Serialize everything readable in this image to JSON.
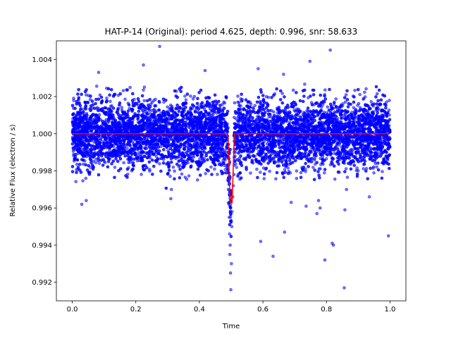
{
  "chart_data": {
    "type": "scatter",
    "title": "HAT-P-14 (Original): period 4.625, depth: 0.996, snr: 58.633",
    "xlabel": "Time",
    "ylabel": "Relative Flux (electron / s)",
    "xlim": [
      -0.05,
      1.05
    ],
    "ylim": [
      0.991,
      1.005
    ],
    "xticks": [
      0.0,
      0.2,
      0.4,
      0.6,
      0.8,
      1.0
    ],
    "xtick_labels": [
      "0.0",
      "0.2",
      "0.4",
      "0.6",
      "0.8",
      "1.0"
    ],
    "yticks": [
      0.992,
      0.994,
      0.996,
      0.998,
      1.0,
      1.002,
      1.004
    ],
    "ytick_labels": [
      "0.992",
      "0.994",
      "0.996",
      "0.998",
      "1.000",
      "1.002",
      "1.004"
    ],
    "grid": false,
    "series": [
      {
        "kind": "scatter",
        "color": "#0000ff",
        "description_points": [
          [
            0.275,
            1.0047
          ],
          [
            0.812,
            1.0045
          ],
          [
            0.748,
            1.0039
          ],
          [
            0.224,
            1.0037
          ],
          [
            0.585,
            1.0035
          ],
          [
            0.418,
            1.0034
          ],
          [
            0.083,
            1.0033
          ],
          [
            0.665,
            1.0032
          ],
          [
            0.593,
            0.9942
          ],
          [
            0.668,
            0.9947
          ],
          [
            0.632,
            0.9934
          ],
          [
            0.795,
            0.9932
          ],
          [
            0.818,
            0.9941
          ],
          [
            0.822,
            0.994
          ],
          [
            0.856,
            0.9917
          ],
          [
            0.995,
            0.9945
          ],
          [
            0.736,
            0.9961
          ],
          [
            0.77,
            0.9957
          ],
          [
            0.78,
            0.996
          ],
          [
            0.689,
            0.9963
          ],
          [
            0.858,
            0.9959
          ],
          [
            0.935,
            0.9966
          ],
          [
            0.31,
            0.9965
          ],
          [
            0.044,
            0.9964
          ],
          [
            0.03,
            0.9962
          ],
          [
            0.312,
            0.997
          ],
          [
            0.775,
            0.9964
          ],
          [
            0.863,
            0.997
          ],
          [
            0.499,
            0.9916
          ],
          [
            0.498,
            0.9925
          ],
          [
            0.501,
            0.993
          ],
          [
            0.496,
            0.9935
          ],
          [
            0.497,
            0.994
          ],
          [
            0.495,
            0.9946
          ],
          [
            0.502,
            0.995
          ],
          [
            0.494,
            0.9955
          ],
          [
            0.503,
            0.9958
          ],
          [
            0.493,
            0.9962
          ],
          [
            0.505,
            0.9966
          ],
          [
            0.491,
            0.997
          ],
          [
            0.507,
            0.9972
          ],
          [
            0.489,
            0.9975
          ],
          [
            0.509,
            0.9978
          ],
          [
            0.487,
            0.9982
          ],
          [
            0.511,
            0.9985
          ],
          [
            0.485,
            0.9988
          ],
          [
            0.513,
            0.999
          ]
        ],
        "band_center": 1.0,
        "band_sigma": 0.0009,
        "n_points": 9000,
        "gap_x": [
          0.5,
          0.509
        ]
      },
      {
        "kind": "line",
        "color": "#ff0000",
        "model_x": [
          0.0,
          0.489,
          0.49,
          0.497,
          0.503,
          0.51,
          0.511,
          1.0
        ],
        "model_y": [
          1.0,
          1.0,
          0.9999,
          0.9963,
          0.9963,
          0.9999,
          1.0,
          1.0
        ]
      }
    ]
  }
}
